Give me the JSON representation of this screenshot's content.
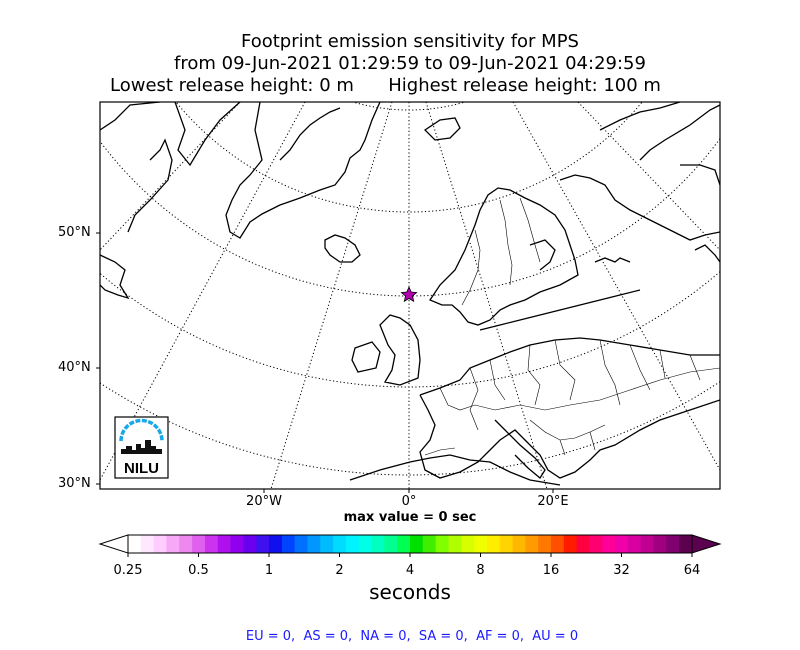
{
  "header": {
    "line1": "Footprint emission sensitivity for MPS",
    "line2": "from 09-Jun-2021 01:29:59 to 09-Jun-2021 04:29:59",
    "line3": "Lowest release height: 0 m      Highest release height: 100 m"
  },
  "map": {
    "lat_labels": [
      "50°N",
      "40°N",
      "30°N"
    ],
    "lon_labels": [
      "20°W",
      "0°",
      "20°E"
    ],
    "receptor_marker": "star",
    "receptor_color": "#b000b0",
    "logo_text": "NILU",
    "logo_color": "#1aa7e8",
    "max_value_text": "max value = 0 sec"
  },
  "chart_data": {
    "type": "heatmap",
    "title": "Footprint emission sensitivity for MPS",
    "subtitle": "from 09-Jun-2021 01:29:59 to 09-Jun-2021 04:29:59",
    "max_value": 0,
    "max_value_unit": "sec",
    "colorbar": {
      "label": "seconds",
      "scale": "log",
      "ticks": [
        "0.25",
        "0.5",
        "1",
        "2",
        "4",
        "8",
        "16",
        "32",
        "64"
      ],
      "colors": [
        "#ffffff",
        "#ffe8ff",
        "#ffccff",
        "#f7a8f7",
        "#ee88ee",
        "#e060ee",
        "#cc33ee",
        "#b010ee",
        "#9000ee",
        "#6a00ee",
        "#4010ee",
        "#1010ee",
        "#0044ff",
        "#0070ff",
        "#0098ff",
        "#00bcff",
        "#00dcff",
        "#00f4ff",
        "#00ffe8",
        "#00ffc0",
        "#00ff90",
        "#00ff50",
        "#00e000",
        "#40ee00",
        "#80ff00",
        "#b0ff00",
        "#d8ff00",
        "#f0ff00",
        "#ffee00",
        "#ffd400",
        "#ffb800",
        "#ff9a00",
        "#ff7800",
        "#ff5000",
        "#ff1a00",
        "#ff0040",
        "#ff0070",
        "#ff0098",
        "#f000a8",
        "#d800a0",
        "#c00090",
        "#a00080",
        "#800070",
        "#5c0050"
      ],
      "extends": "both"
    },
    "regions": [
      {
        "name": "EU",
        "value": 0
      },
      {
        "name": "AS",
        "value": 0
      },
      {
        "name": "NA",
        "value": 0
      },
      {
        "name": "SA",
        "value": 0
      },
      {
        "name": "AF",
        "value": 0
      },
      {
        "name": "AU",
        "value": 0
      }
    ]
  },
  "footer": {
    "regions_text": "EU = 0,  AS = 0,  NA = 0,  SA = 0,  AF = 0,  AU = 0"
  }
}
